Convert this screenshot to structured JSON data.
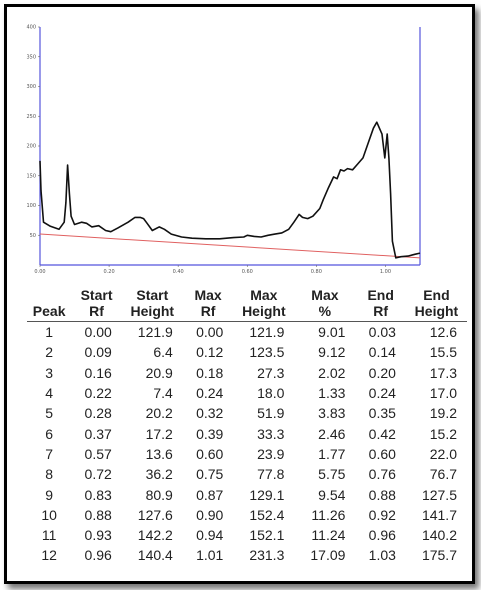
{
  "colors": {
    "frame": "#000000",
    "trace": "#111111",
    "baseline": "#e06060",
    "axis": "#5555dd"
  },
  "chart_data": {
    "type": "line",
    "xlim": [
      0,
      1.1
    ],
    "ylim": [
      0,
      400
    ],
    "x_ticks": [
      "0.00",
      "0.20",
      "0.40",
      "0.60",
      "0.80",
      "1.00"
    ],
    "y_ticks": [
      "50",
      "100",
      "150",
      "200",
      "250",
      "300",
      "350",
      "400"
    ],
    "series": [
      {
        "points": [
          [
            0.0,
            175
          ],
          [
            0.003,
            125
          ],
          [
            0.01,
            72
          ],
          [
            0.03,
            65
          ],
          [
            0.055,
            60
          ],
          [
            0.07,
            72
          ],
          [
            0.075,
            105
          ],
          [
            0.08,
            168
          ],
          [
            0.085,
            120
          ],
          [
            0.09,
            82
          ],
          [
            0.1,
            68
          ],
          [
            0.12,
            72
          ],
          [
            0.135,
            70
          ],
          [
            0.15,
            64
          ],
          [
            0.17,
            66
          ],
          [
            0.19,
            58
          ],
          [
            0.205,
            56
          ],
          [
            0.225,
            62
          ],
          [
            0.255,
            72
          ],
          [
            0.275,
            80
          ],
          [
            0.29,
            80
          ],
          [
            0.3,
            78
          ],
          [
            0.31,
            70
          ],
          [
            0.325,
            58
          ],
          [
            0.345,
            64
          ],
          [
            0.36,
            60
          ],
          [
            0.38,
            52
          ],
          [
            0.41,
            47
          ],
          [
            0.44,
            45
          ],
          [
            0.48,
            44
          ],
          [
            0.52,
            44
          ],
          [
            0.56,
            46
          ],
          [
            0.59,
            47
          ],
          [
            0.6,
            50
          ],
          [
            0.62,
            48
          ],
          [
            0.64,
            47
          ],
          [
            0.66,
            50
          ],
          [
            0.68,
            52
          ],
          [
            0.7,
            54
          ],
          [
            0.72,
            60
          ],
          [
            0.735,
            72
          ],
          [
            0.75,
            85
          ],
          [
            0.76,
            80
          ],
          [
            0.775,
            78
          ],
          [
            0.79,
            82
          ],
          [
            0.81,
            95
          ],
          [
            0.82,
            110
          ],
          [
            0.835,
            130
          ],
          [
            0.85,
            148
          ],
          [
            0.86,
            145
          ],
          [
            0.87,
            160
          ],
          [
            0.88,
            158
          ],
          [
            0.89,
            162
          ],
          [
            0.905,
            160
          ],
          [
            0.92,
            170
          ],
          [
            0.935,
            180
          ],
          [
            0.95,
            205
          ],
          [
            0.965,
            230
          ],
          [
            0.975,
            240
          ],
          [
            0.99,
            220
          ],
          [
            0.998,
            180
          ],
          [
            1.005,
            220
          ],
          [
            1.01,
            180
          ],
          [
            1.015,
            120
          ],
          [
            1.02,
            40
          ],
          [
            1.03,
            12
          ],
          [
            1.045,
            14
          ],
          [
            1.065,
            15
          ],
          [
            1.085,
            18
          ],
          [
            1.1,
            20
          ]
        ]
      },
      {
        "points": [
          [
            0.0,
            52
          ],
          [
            1.1,
            12
          ]
        ]
      }
    ]
  },
  "table": {
    "headers": [
      [
        "Peak"
      ],
      [
        "Start",
        "Rf"
      ],
      [
        "Start",
        "Height"
      ],
      [
        "Max",
        "Rf"
      ],
      [
        "Max",
        "Height"
      ],
      [
        "Max",
        "%"
      ],
      [
        "End",
        "Rf"
      ],
      [
        "End",
        "Height"
      ]
    ],
    "rows": [
      [
        "1",
        "0.00",
        "121.9",
        "0.00",
        "121.9",
        "9.01",
        "0.03",
        "12.6"
      ],
      [
        "2",
        "0.09",
        "6.4",
        "0.12",
        "123.5",
        "9.12",
        "0.14",
        "15.5"
      ],
      [
        "3",
        "0.16",
        "20.9",
        "0.18",
        "27.3",
        "2.02",
        "0.20",
        "17.3"
      ],
      [
        "4",
        "0.22",
        "7.4",
        "0.24",
        "18.0",
        "1.33",
        "0.24",
        "17.0"
      ],
      [
        "5",
        "0.28",
        "20.2",
        "0.32",
        "51.9",
        "3.83",
        "0.35",
        "19.2"
      ],
      [
        "6",
        "0.37",
        "17.2",
        "0.39",
        "33.3",
        "2.46",
        "0.42",
        "15.2"
      ],
      [
        "7",
        "0.57",
        "13.6",
        "0.60",
        "23.9",
        "1.77",
        "0.60",
        "22.0"
      ],
      [
        "8",
        "0.72",
        "36.2",
        "0.75",
        "77.8",
        "5.75",
        "0.76",
        "76.7"
      ],
      [
        "9",
        "0.83",
        "80.9",
        "0.87",
        "129.1",
        "9.54",
        "0.88",
        "127.5"
      ],
      [
        "10",
        "0.88",
        "127.6",
        "0.90",
        "152.4",
        "11.26",
        "0.92",
        "141.7"
      ],
      [
        "11",
        "0.93",
        "142.2",
        "0.94",
        "152.1",
        "11.24",
        "0.96",
        "140.2"
      ],
      [
        "12",
        "0.96",
        "140.4",
        "1.01",
        "231.3",
        "17.09",
        "1.03",
        "175.7"
      ]
    ]
  }
}
